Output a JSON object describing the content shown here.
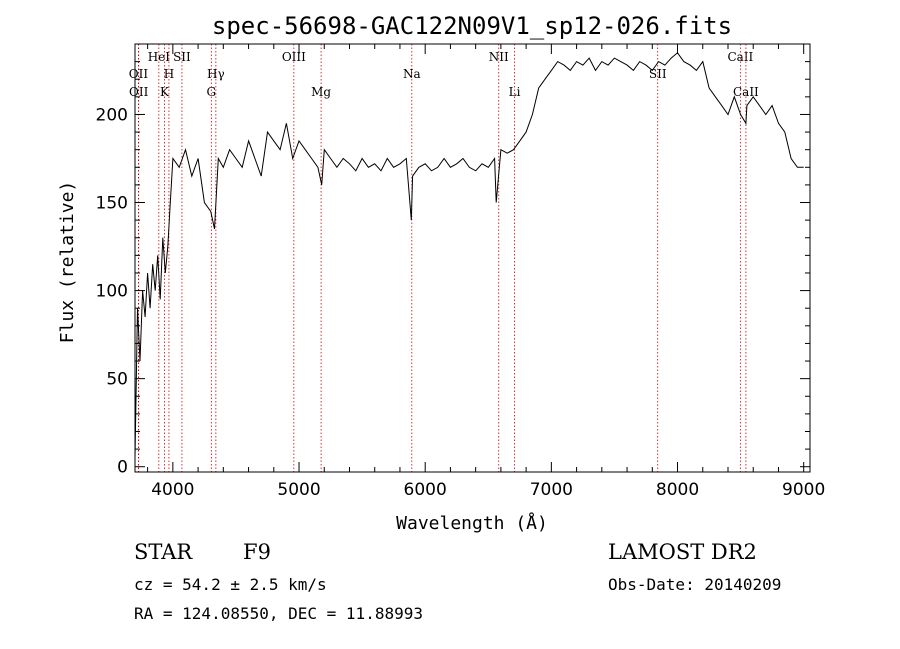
{
  "chart_data": {
    "type": "line",
    "title": "spec-56698-GAC122N09V1_sp12-026.fits",
    "xlabel": "Wavelength (Å)",
    "ylabel": "Flux (relative)",
    "xlim": [
      3700,
      9050
    ],
    "ylim": [
      -3,
      240
    ],
    "x_ticks": [
      4000,
      5000,
      6000,
      7000,
      8000,
      9000
    ],
    "y_ticks": [
      0,
      50,
      100,
      150,
      200
    ],
    "grid": false,
    "series": [
      {
        "x": [
          3700,
          3720,
          3740,
          3760,
          3780,
          3800,
          3820,
          3840,
          3860,
          3880,
          3900,
          3920,
          3940,
          3960,
          3980,
          4000,
          4050,
          4100,
          4150,
          4200,
          4250,
          4300,
          4330,
          4360,
          4400,
          4450,
          4500,
          4550,
          4600,
          4650,
          4700,
          4750,
          4800,
          4850,
          4900,
          4950,
          5000,
          5050,
          5100,
          5150,
          5180,
          5200,
          5250,
          5300,
          5350,
          5400,
          5450,
          5500,
          5550,
          5600,
          5650,
          5700,
          5750,
          5800,
          5850,
          5890,
          5900,
          5950,
          6000,
          6050,
          6100,
          6150,
          6200,
          6250,
          6300,
          6350,
          6400,
          6450,
          6500,
          6550,
          6563,
          6600,
          6650,
          6700,
          6750,
          6800,
          6850,
          6900,
          6950,
          7000,
          7050,
          7100,
          7150,
          7200,
          7250,
          7300,
          7350,
          7400,
          7450,
          7500,
          7550,
          7600,
          7650,
          7700,
          7750,
          7800,
          7850,
          7900,
          7950,
          8000,
          8050,
          8100,
          8150,
          8200,
          8250,
          8300,
          8350,
          8400,
          8450,
          8500,
          8542,
          8550,
          8600,
          8650,
          8700,
          8750,
          8800,
          8850,
          8900,
          8950,
          9000
        ],
        "y": [
          5,
          90,
          60,
          100,
          85,
          110,
          90,
          115,
          100,
          120,
          95,
          130,
          110,
          125,
          150,
          175,
          170,
          180,
          165,
          175,
          150,
          145,
          135,
          175,
          170,
          180,
          175,
          170,
          185,
          175,
          165,
          190,
          185,
          180,
          195,
          175,
          185,
          180,
          175,
          170,
          160,
          180,
          175,
          170,
          175,
          172,
          168,
          175,
          170,
          172,
          168,
          175,
          170,
          172,
          175,
          140,
          165,
          170,
          172,
          168,
          170,
          175,
          170,
          172,
          175,
          170,
          168,
          172,
          170,
          175,
          150,
          180,
          178,
          180,
          185,
          190,
          200,
          215,
          220,
          225,
          230,
          228,
          225,
          230,
          228,
          232,
          225,
          230,
          228,
          232,
          230,
          228,
          225,
          230,
          228,
          225,
          230,
          228,
          232,
          235,
          230,
          228,
          225,
          230,
          215,
          210,
          205,
          200,
          210,
          200,
          195,
          205,
          210,
          205,
          200,
          205,
          195,
          190,
          175,
          170,
          170
        ]
      }
    ],
    "line_markers": [
      {
        "label": "OII",
        "x": 3727,
        "row": 1
      },
      {
        "label": "OII",
        "x": 3729,
        "row": 2
      },
      {
        "label": "HeI",
        "x": 3889,
        "row": 0
      },
      {
        "label": "H",
        "x": 3969,
        "row": 1
      },
      {
        "label": "K",
        "x": 3934,
        "row": 2
      },
      {
        "label": "SII",
        "x": 4072,
        "row": 0
      },
      {
        "label": "Hγ",
        "x": 4341,
        "row": 1
      },
      {
        "label": "G",
        "x": 4305,
        "row": 2
      },
      {
        "label": "OIII",
        "x": 4959,
        "row": 0
      },
      {
        "label": "Mg",
        "x": 5175,
        "row": 2
      },
      {
        "label": "Na",
        "x": 5894,
        "row": 1
      },
      {
        "label": "NII",
        "x": 6583,
        "row": 0
      },
      {
        "label": "Li",
        "x": 6708,
        "row": 2
      },
      {
        "label": "SII",
        "x": 7843,
        "row": 1
      },
      {
        "label": "CaII",
        "x": 8498,
        "row": 0
      },
      {
        "label": "CaII",
        "x": 8542,
        "row": 2
      }
    ]
  },
  "info": {
    "object_class": "STAR",
    "subclass": "F9",
    "survey": "LAMOST DR2",
    "cz": "cz = 54.2 ± 2.5 km/s",
    "obs_date": "Obs-Date: 20140209",
    "coords": "RA = 124.08550, DEC =  11.88993"
  },
  "colors": {
    "spectrum": "#000000",
    "marker": "#cc0000"
  }
}
